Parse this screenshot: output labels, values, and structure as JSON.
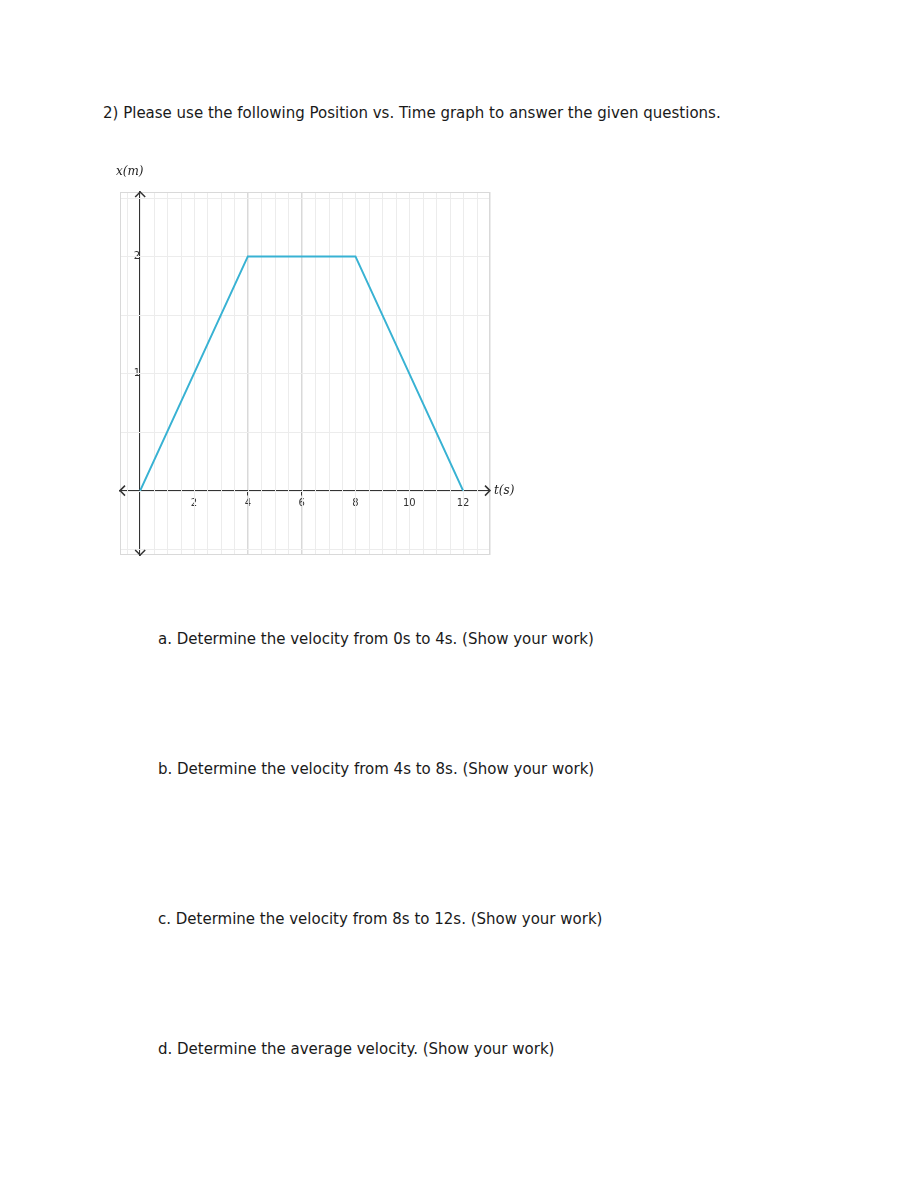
{
  "question": "2) Please use the following Position vs. Time graph to answer the given questions.",
  "chart_data": {
    "type": "line",
    "x_label": "t(s)",
    "y_label": "x(m)",
    "x": [
      0,
      4,
      8,
      12
    ],
    "values": [
      0,
      2,
      2,
      0
    ],
    "color": "#38b2d3",
    "xlim": [
      -0.75,
      13
    ],
    "ylim": [
      -0.55,
      2.55
    ],
    "xticks": [
      2,
      4,
      6,
      8,
      10,
      12
    ],
    "yticks": [
      1,
      2
    ],
    "grid": true
  },
  "parts": [
    "a. Determine the velocity from 0s to 4s. (Show your work)",
    "b. Determine the velocity from 4s to 8s. (Show your work)",
    "c. Determine the velocity from 8s to 12s. (Show your work)",
    "d. Determine the average velocity. (Show your work)"
  ]
}
